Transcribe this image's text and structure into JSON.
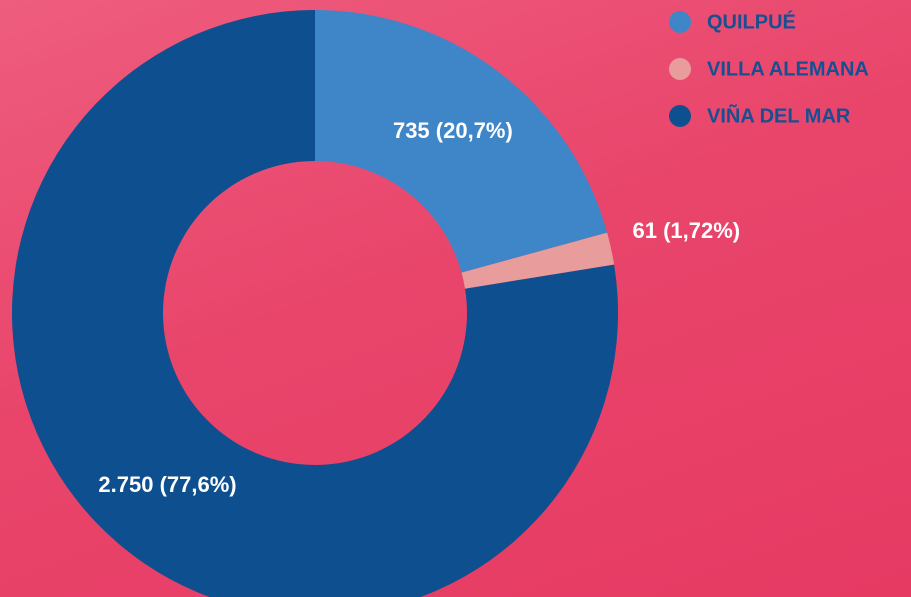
{
  "chart_data": {
    "type": "donut",
    "categories": [
      "QUILPUÉ",
      "VILLA ALEMANA",
      "VIÑA DEL MAR"
    ],
    "values": [
      735,
      61,
      2750
    ],
    "value_labels": [
      "735 (20,7%)",
      "61 (1,72%)",
      "2.750 (77,6%)"
    ],
    "colors": [
      "#3f86c8",
      "#e89c9c",
      "#0d4f8f"
    ],
    "legend": "top-right"
  }
}
